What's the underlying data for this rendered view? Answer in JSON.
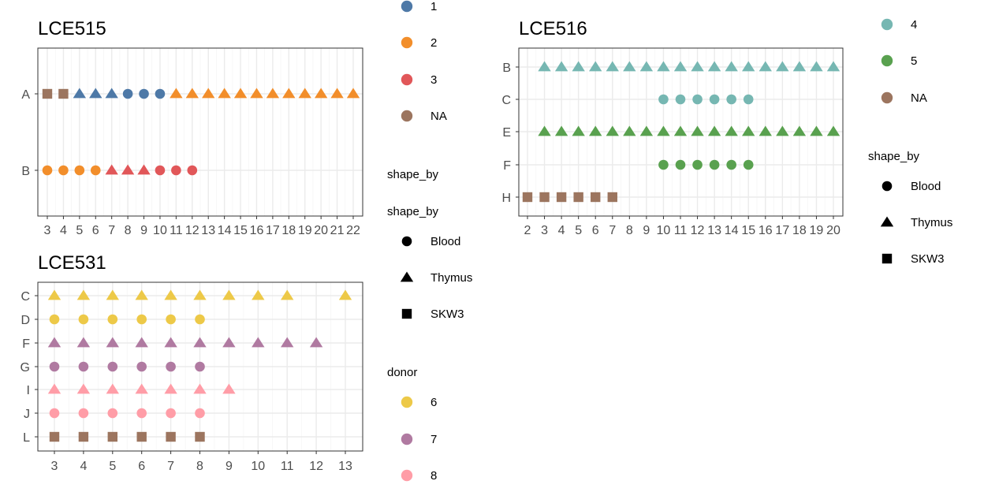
{
  "colors": {
    "donor_1": "#4E79A7",
    "donor_2": "#F28E2B",
    "donor_3": "#E15759",
    "donor_4": "#76B7B2",
    "donor_5": "#59A14F",
    "donor_6": "#EDC948",
    "donor_7": "#B07AA1",
    "donor_8": "#FF9DA7",
    "donor_NA": "#9C755F"
  },
  "chart_data": [
    {
      "type": "scatter",
      "title": "LCE515",
      "xlabel": "",
      "ylabel": "",
      "x_ticks": [
        "3",
        "4",
        "5",
        "6",
        "7",
        "8",
        "9",
        "10",
        "11",
        "12",
        "13",
        "14",
        "15",
        "16",
        "17",
        "18",
        "19",
        "20",
        "21",
        "22"
      ],
      "y_categories": [
        "A",
        "B"
      ],
      "xlim": [
        3,
        22
      ],
      "grid": true,
      "rows": [
        {
          "y": "A",
          "points": [
            {
              "x": 3,
              "shape": "SKW3",
              "donor": "NA"
            },
            {
              "x": 4,
              "shape": "SKW3",
              "donor": "NA"
            },
            {
              "x": 5,
              "shape": "Thymus",
              "donor": "1"
            },
            {
              "x": 6,
              "shape": "Thymus",
              "donor": "1"
            },
            {
              "x": 7,
              "shape": "Thymus",
              "donor": "1"
            },
            {
              "x": 8,
              "shape": "Blood",
              "donor": "1"
            },
            {
              "x": 9,
              "shape": "Blood",
              "donor": "1"
            },
            {
              "x": 10,
              "shape": "Blood",
              "donor": "1"
            },
            {
              "x": 11,
              "shape": "Thymus",
              "donor": "2"
            },
            {
              "x": 12,
              "shape": "Thymus",
              "donor": "2"
            },
            {
              "x": 13,
              "shape": "Thymus",
              "donor": "2"
            },
            {
              "x": 14,
              "shape": "Thymus",
              "donor": "2"
            },
            {
              "x": 15,
              "shape": "Thymus",
              "donor": "2"
            },
            {
              "x": 16,
              "shape": "Thymus",
              "donor": "2"
            },
            {
              "x": 17,
              "shape": "Thymus",
              "donor": "2"
            },
            {
              "x": 18,
              "shape": "Thymus",
              "donor": "2"
            },
            {
              "x": 19,
              "shape": "Thymus",
              "donor": "2"
            },
            {
              "x": 20,
              "shape": "Thymus",
              "donor": "2"
            },
            {
              "x": 21,
              "shape": "Thymus",
              "donor": "2"
            },
            {
              "x": 22,
              "shape": "Thymus",
              "donor": "2"
            }
          ]
        },
        {
          "y": "B",
          "points": [
            {
              "x": 3,
              "shape": "Blood",
              "donor": "2"
            },
            {
              "x": 4,
              "shape": "Blood",
              "donor": "2"
            },
            {
              "x": 5,
              "shape": "Blood",
              "donor": "2"
            },
            {
              "x": 6,
              "shape": "Blood",
              "donor": "2"
            },
            {
              "x": 7,
              "shape": "Thymus",
              "donor": "3"
            },
            {
              "x": 8,
              "shape": "Thymus",
              "donor": "3"
            },
            {
              "x": 9,
              "shape": "Thymus",
              "donor": "3"
            },
            {
              "x": 10,
              "shape": "Blood",
              "donor": "3"
            },
            {
              "x": 11,
              "shape": "Blood",
              "donor": "3"
            },
            {
              "x": 12,
              "shape": "Blood",
              "donor": "3"
            }
          ]
        }
      ]
    },
    {
      "type": "scatter",
      "title": "LCE516",
      "xlabel": "",
      "ylabel": "",
      "x_ticks": [
        "2",
        "3",
        "4",
        "5",
        "6",
        "7",
        "8",
        "9",
        "10",
        "11",
        "12",
        "13",
        "14",
        "15",
        "16",
        "17",
        "18",
        "19",
        "20"
      ],
      "y_categories": [
        "B",
        "C",
        "E",
        "F",
        "H"
      ],
      "xlim": [
        2,
        20
      ],
      "grid": true,
      "rows": [
        {
          "y": "B",
          "points": [
            {
              "x": 3,
              "shape": "Thymus",
              "donor": "4"
            },
            {
              "x": 4,
              "shape": "Thymus",
              "donor": "4"
            },
            {
              "x": 5,
              "shape": "Thymus",
              "donor": "4"
            },
            {
              "x": 6,
              "shape": "Thymus",
              "donor": "4"
            },
            {
              "x": 7,
              "shape": "Thymus",
              "donor": "4"
            },
            {
              "x": 8,
              "shape": "Thymus",
              "donor": "4"
            },
            {
              "x": 9,
              "shape": "Thymus",
              "donor": "4"
            },
            {
              "x": 10,
              "shape": "Thymus",
              "donor": "4"
            },
            {
              "x": 11,
              "shape": "Thymus",
              "donor": "4"
            },
            {
              "x": 12,
              "shape": "Thymus",
              "donor": "4"
            },
            {
              "x": 13,
              "shape": "Thymus",
              "donor": "4"
            },
            {
              "x": 14,
              "shape": "Thymus",
              "donor": "4"
            },
            {
              "x": 15,
              "shape": "Thymus",
              "donor": "4"
            },
            {
              "x": 16,
              "shape": "Thymus",
              "donor": "4"
            },
            {
              "x": 17,
              "shape": "Thymus",
              "donor": "4"
            },
            {
              "x": 18,
              "shape": "Thymus",
              "donor": "4"
            },
            {
              "x": 19,
              "shape": "Thymus",
              "donor": "4"
            },
            {
              "x": 20,
              "shape": "Thymus",
              "donor": "4"
            }
          ]
        },
        {
          "y": "C",
          "points": [
            {
              "x": 10,
              "shape": "Blood",
              "donor": "4"
            },
            {
              "x": 11,
              "shape": "Blood",
              "donor": "4"
            },
            {
              "x": 12,
              "shape": "Blood",
              "donor": "4"
            },
            {
              "x": 13,
              "shape": "Blood",
              "donor": "4"
            },
            {
              "x": 14,
              "shape": "Blood",
              "donor": "4"
            },
            {
              "x": 15,
              "shape": "Blood",
              "donor": "4"
            }
          ]
        },
        {
          "y": "E",
          "points": [
            {
              "x": 3,
              "shape": "Thymus",
              "donor": "5"
            },
            {
              "x": 4,
              "shape": "Thymus",
              "donor": "5"
            },
            {
              "x": 5,
              "shape": "Thymus",
              "donor": "5"
            },
            {
              "x": 6,
              "shape": "Thymus",
              "donor": "5"
            },
            {
              "x": 7,
              "shape": "Thymus",
              "donor": "5"
            },
            {
              "x": 8,
              "shape": "Thymus",
              "donor": "5"
            },
            {
              "x": 9,
              "shape": "Thymus",
              "donor": "5"
            },
            {
              "x": 10,
              "shape": "Thymus",
              "donor": "5"
            },
            {
              "x": 11,
              "shape": "Thymus",
              "donor": "5"
            },
            {
              "x": 12,
              "shape": "Thymus",
              "donor": "5"
            },
            {
              "x": 13,
              "shape": "Thymus",
              "donor": "5"
            },
            {
              "x": 14,
              "shape": "Thymus",
              "donor": "5"
            },
            {
              "x": 15,
              "shape": "Thymus",
              "donor": "5"
            },
            {
              "x": 16,
              "shape": "Thymus",
              "donor": "5"
            },
            {
              "x": 17,
              "shape": "Thymus",
              "donor": "5"
            },
            {
              "x": 18,
              "shape": "Thymus",
              "donor": "5"
            },
            {
              "x": 19,
              "shape": "Thymus",
              "donor": "5"
            },
            {
              "x": 20,
              "shape": "Thymus",
              "donor": "5"
            }
          ]
        },
        {
          "y": "F",
          "points": [
            {
              "x": 10,
              "shape": "Blood",
              "donor": "5"
            },
            {
              "x": 11,
              "shape": "Blood",
              "donor": "5"
            },
            {
              "x": 12,
              "shape": "Blood",
              "donor": "5"
            },
            {
              "x": 13,
              "shape": "Blood",
              "donor": "5"
            },
            {
              "x": 14,
              "shape": "Blood",
              "donor": "5"
            },
            {
              "x": 15,
              "shape": "Blood",
              "donor": "5"
            }
          ]
        },
        {
          "y": "H",
          "points": [
            {
              "x": 2,
              "shape": "SKW3",
              "donor": "NA"
            },
            {
              "x": 3,
              "shape": "SKW3",
              "donor": "NA"
            },
            {
              "x": 4,
              "shape": "SKW3",
              "donor": "NA"
            },
            {
              "x": 5,
              "shape": "SKW3",
              "donor": "NA"
            },
            {
              "x": 6,
              "shape": "SKW3",
              "donor": "NA"
            },
            {
              "x": 7,
              "shape": "SKW3",
              "donor": "NA"
            }
          ]
        }
      ]
    },
    {
      "type": "scatter",
      "title": "LCE531",
      "xlabel": "",
      "ylabel": "",
      "x_ticks": [
        "3",
        "4",
        "5",
        "6",
        "7",
        "8",
        "9",
        "10",
        "11",
        "12",
        "13"
      ],
      "y_categories": [
        "C",
        "D",
        "F",
        "G",
        "I",
        "J",
        "L"
      ],
      "xlim": [
        3,
        13
      ],
      "grid": true,
      "rows": [
        {
          "y": "C",
          "points": [
            {
              "x": 3,
              "shape": "Thymus",
              "donor": "6"
            },
            {
              "x": 4,
              "shape": "Thymus",
              "donor": "6"
            },
            {
              "x": 5,
              "shape": "Thymus",
              "donor": "6"
            },
            {
              "x": 6,
              "shape": "Thymus",
              "donor": "6"
            },
            {
              "x": 7,
              "shape": "Thymus",
              "donor": "6"
            },
            {
              "x": 8,
              "shape": "Thymus",
              "donor": "6"
            },
            {
              "x": 9,
              "shape": "Thymus",
              "donor": "6"
            },
            {
              "x": 10,
              "shape": "Thymus",
              "donor": "6"
            },
            {
              "x": 11,
              "shape": "Thymus",
              "donor": "6"
            },
            {
              "x": 13,
              "shape": "Thymus",
              "donor": "6"
            }
          ]
        },
        {
          "y": "D",
          "points": [
            {
              "x": 3,
              "shape": "Blood",
              "donor": "6"
            },
            {
              "x": 4,
              "shape": "Blood",
              "donor": "6"
            },
            {
              "x": 5,
              "shape": "Blood",
              "donor": "6"
            },
            {
              "x": 6,
              "shape": "Blood",
              "donor": "6"
            },
            {
              "x": 7,
              "shape": "Blood",
              "donor": "6"
            },
            {
              "x": 8,
              "shape": "Blood",
              "donor": "6"
            }
          ]
        },
        {
          "y": "F",
          "points": [
            {
              "x": 3,
              "shape": "Thymus",
              "donor": "7"
            },
            {
              "x": 4,
              "shape": "Thymus",
              "donor": "7"
            },
            {
              "x": 5,
              "shape": "Thymus",
              "donor": "7"
            },
            {
              "x": 6,
              "shape": "Thymus",
              "donor": "7"
            },
            {
              "x": 7,
              "shape": "Thymus",
              "donor": "7"
            },
            {
              "x": 8,
              "shape": "Thymus",
              "donor": "7"
            },
            {
              "x": 9,
              "shape": "Thymus",
              "donor": "7"
            },
            {
              "x": 10,
              "shape": "Thymus",
              "donor": "7"
            },
            {
              "x": 11,
              "shape": "Thymus",
              "donor": "7"
            },
            {
              "x": 12,
              "shape": "Thymus",
              "donor": "7"
            }
          ]
        },
        {
          "y": "G",
          "points": [
            {
              "x": 3,
              "shape": "Blood",
              "donor": "7"
            },
            {
              "x": 4,
              "shape": "Blood",
              "donor": "7"
            },
            {
              "x": 5,
              "shape": "Blood",
              "donor": "7"
            },
            {
              "x": 6,
              "shape": "Blood",
              "donor": "7"
            },
            {
              "x": 7,
              "shape": "Blood",
              "donor": "7"
            },
            {
              "x": 8,
              "shape": "Blood",
              "donor": "7"
            }
          ]
        },
        {
          "y": "I",
          "points": [
            {
              "x": 3,
              "shape": "Thymus",
              "donor": "8"
            },
            {
              "x": 4,
              "shape": "Thymus",
              "donor": "8"
            },
            {
              "x": 5,
              "shape": "Thymus",
              "donor": "8"
            },
            {
              "x": 6,
              "shape": "Thymus",
              "donor": "8"
            },
            {
              "x": 7,
              "shape": "Thymus",
              "donor": "8"
            },
            {
              "x": 8,
              "shape": "Thymus",
              "donor": "8"
            },
            {
              "x": 9,
              "shape": "Thymus",
              "donor": "8"
            }
          ]
        },
        {
          "y": "J",
          "points": [
            {
              "x": 3,
              "shape": "Blood",
              "donor": "8"
            },
            {
              "x": 4,
              "shape": "Blood",
              "donor": "8"
            },
            {
              "x": 5,
              "shape": "Blood",
              "donor": "8"
            },
            {
              "x": 6,
              "shape": "Blood",
              "donor": "8"
            },
            {
              "x": 7,
              "shape": "Blood",
              "donor": "8"
            },
            {
              "x": 8,
              "shape": "Blood",
              "donor": "8"
            }
          ]
        },
        {
          "y": "L",
          "points": [
            {
              "x": 3,
              "shape": "SKW3",
              "donor": "NA"
            },
            {
              "x": 4,
              "shape": "SKW3",
              "donor": "NA"
            },
            {
              "x": 5,
              "shape": "SKW3",
              "donor": "NA"
            },
            {
              "x": 6,
              "shape": "SKW3",
              "donor": "NA"
            },
            {
              "x": 7,
              "shape": "SKW3",
              "donor": "NA"
            },
            {
              "x": 8,
              "shape": "SKW3",
              "donor": "NA"
            }
          ]
        }
      ]
    }
  ],
  "legends": {
    "lce515_donor": {
      "items": [
        {
          "label": "1",
          "color_key": "donor_1"
        },
        {
          "label": "2",
          "color_key": "donor_2"
        },
        {
          "label": "3",
          "color_key": "donor_3"
        },
        {
          "label": "NA",
          "color_key": "donor_NA"
        }
      ]
    },
    "lce515_shape": {
      "title": "shape_by"
    },
    "lce531_shape": {
      "title": "shape_by",
      "items": [
        {
          "label": "Blood",
          "shape": "Blood"
        },
        {
          "label": "Thymus",
          "shape": "Thymus"
        },
        {
          "label": "SKW3",
          "shape": "SKW3"
        }
      ]
    },
    "lce531_donor": {
      "title": "donor",
      "items": [
        {
          "label": "6",
          "color_key": "donor_6"
        },
        {
          "label": "7",
          "color_key": "donor_7"
        },
        {
          "label": "8",
          "color_key": "donor_8"
        }
      ]
    },
    "lce516_donor": {
      "items": [
        {
          "label": "4",
          "color_key": "donor_4"
        },
        {
          "label": "5",
          "color_key": "donor_5"
        },
        {
          "label": "NA",
          "color_key": "donor_NA"
        }
      ]
    },
    "lce516_shape": {
      "title": "shape_by",
      "items": [
        {
          "label": "Blood",
          "shape": "Blood"
        },
        {
          "label": "Thymus",
          "shape": "Thymus"
        },
        {
          "label": "SKW3",
          "shape": "SKW3"
        }
      ]
    }
  }
}
